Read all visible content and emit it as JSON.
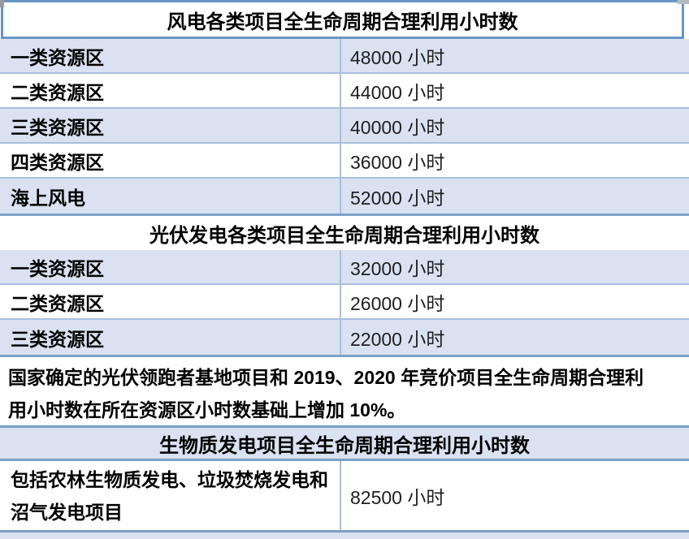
{
  "colors": {
    "row_alt_bg": "#dae1f0",
    "thin_separator": "#a7c0dd",
    "strong_separator": "#7ba1c8",
    "header_cell_border": "#6896c6",
    "text": "#000000"
  },
  "table": {
    "sections": [
      {
        "header": "风电各类项目全生命周期合理利用小时数",
        "rows": [
          {
            "label": "一类资源区",
            "value": "48000 小时"
          },
          {
            "label": "二类资源区",
            "value": "44000 小时"
          },
          {
            "label": "三类资源区",
            "value": "40000 小时"
          },
          {
            "label": "四类资源区",
            "value": "36000 小时"
          },
          {
            "label": "海上风电",
            "value": "52000 小时"
          }
        ]
      },
      {
        "header": "光伏发电各类项目全生命周期合理利用小时数",
        "rows": [
          {
            "label": "一类资源区",
            "value": "32000 小时"
          },
          {
            "label": "二类资源区",
            "value": "26000 小时"
          },
          {
            "label": "三类资源区",
            "value": "22000 小时"
          }
        ],
        "note": "国家确定的光伏领跑者基地项目和 2019、2020 年竞价项目全生命周期合理利\n用小时数在所在资源区小时数基础上增加 10%。"
      },
      {
        "header": "生物质发电项目全生命周期合理利用小时数",
        "rows": [
          {
            "label": "包括农林生物质发电、垃圾焚烧发电和\n沼气发电项目",
            "value": "82500 小时"
          }
        ]
      }
    ]
  }
}
